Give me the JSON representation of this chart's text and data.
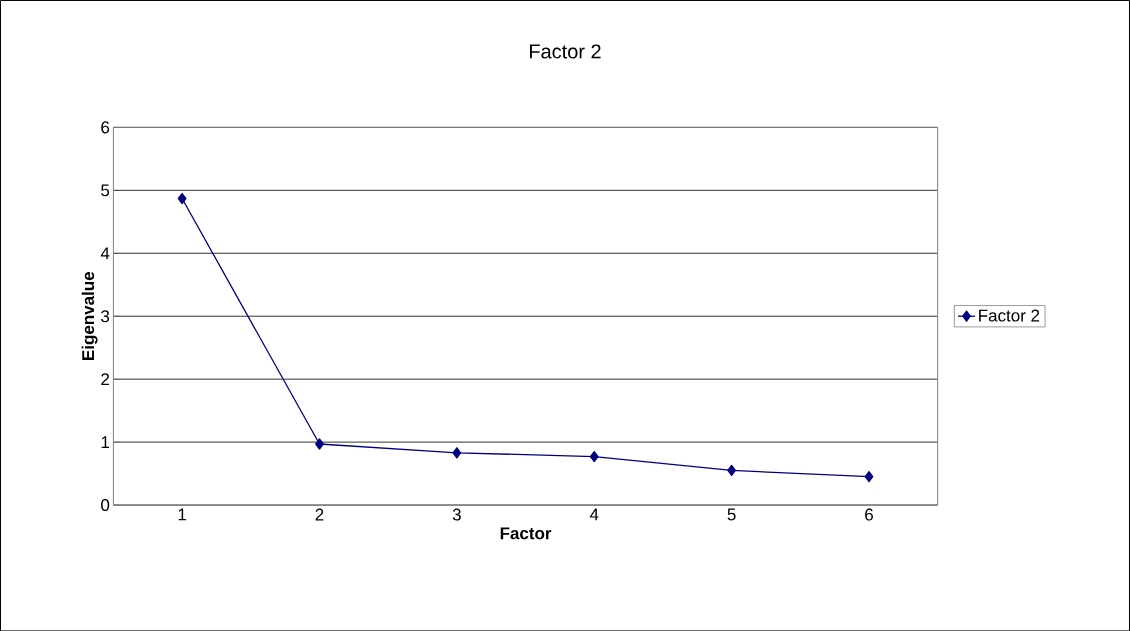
{
  "chart_data": {
    "type": "line",
    "title": "Factor 2",
    "xlabel": "Factor",
    "ylabel": "Eigenvalue",
    "categories": [
      "1",
      "2",
      "3",
      "4",
      "5",
      "6"
    ],
    "series": [
      {
        "name": "Factor 2",
        "color": "#000080",
        "values": [
          4.87,
          0.97,
          0.83,
          0.77,
          0.55,
          0.45
        ]
      }
    ],
    "ylim": [
      0,
      6
    ],
    "yticks": [
      0,
      1,
      2,
      3,
      4,
      5,
      6
    ],
    "grid": "y",
    "legend": "right",
    "marker": "diamond",
    "line_style": "solid"
  }
}
